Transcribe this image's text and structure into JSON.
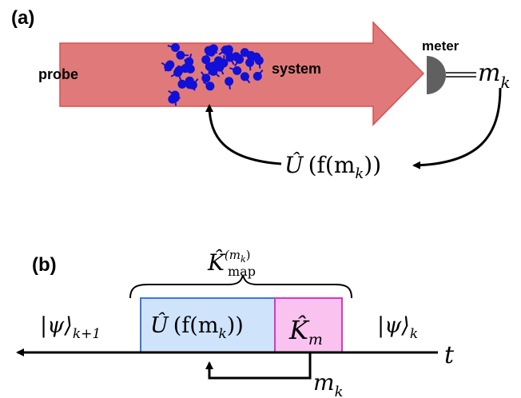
{
  "panel_a": {
    "label": "(a)",
    "probe_label": "probe",
    "system_label": "system",
    "meter_label": "meter",
    "measurement": {
      "symbol": "m",
      "subscript": "k"
    },
    "feedback": {
      "operator": "Û",
      "argument_open": "(f(m",
      "argument_sub": "k",
      "argument_close": "))"
    },
    "colors": {
      "arrow_fill": "#e07a7a",
      "arrow_stroke": "#d65050",
      "particles": "#1010d8",
      "meter": "#606060"
    }
  },
  "panel_b": {
    "label": "(b)",
    "map": {
      "operator": "K̂",
      "superscript": "(m",
      "superscript_sub": "k",
      "superscript_close": ")",
      "subscript": "map"
    },
    "state_left": {
      "text": "|ψ⟩",
      "subscript": "k+1"
    },
    "state_right": {
      "text": "|ψ⟩",
      "subscript": "k"
    },
    "unitary_box": {
      "operator": "Û",
      "argument_open": "(f(m",
      "argument_sub": "k",
      "argument_close": "))"
    },
    "kraus_box": {
      "operator": "K̂",
      "subscript": "m"
    },
    "time_label": "t",
    "measurement": {
      "symbol": "m",
      "subscript": "k"
    },
    "colors": {
      "unitary_fill": "#cfe3fb",
      "unitary_stroke": "#3a78d8",
      "kraus_fill": "#f9c2ef",
      "kraus_stroke": "#d43cb8"
    }
  }
}
